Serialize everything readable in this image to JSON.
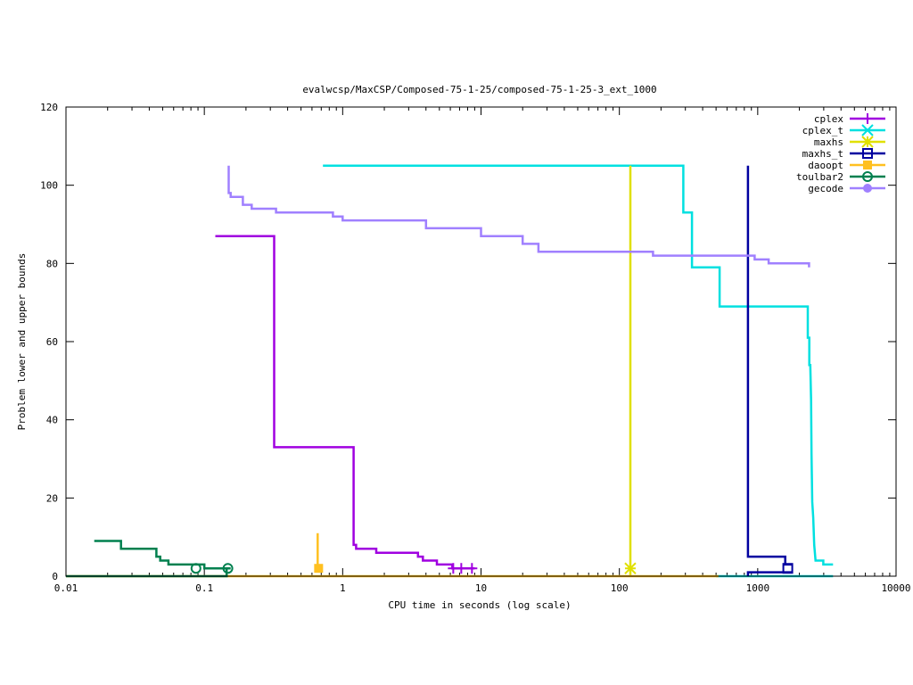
{
  "chart_data": {
    "type": "line",
    "title": "evalwcsp/MaxCSP/Composed-75-1-25/composed-75-1-25-3_ext_1000",
    "xlabel": "CPU time in seconds (log scale)",
    "ylabel": "Problem lower and upper bounds",
    "xscale": "log",
    "xlim": [
      0.01,
      10000
    ],
    "ylim": [
      0,
      120
    ],
    "x_ticks": [
      {
        "value": 0.01,
        "label": "0.01"
      },
      {
        "value": 0.1,
        "label": "0.1"
      },
      {
        "value": 1,
        "label": "1"
      },
      {
        "value": 10,
        "label": "10"
      },
      {
        "value": 100,
        "label": "100"
      },
      {
        "value": 1000,
        "label": "1000"
      },
      {
        "value": 10000,
        "label": "10000"
      }
    ],
    "y_ticks": [
      {
        "value": 0,
        "label": "0"
      },
      {
        "value": 20,
        "label": "20"
      },
      {
        "value": 40,
        "label": "40"
      },
      {
        "value": 60,
        "label": "60"
      },
      {
        "value": 80,
        "label": "80"
      },
      {
        "value": 100,
        "label": "100"
      },
      {
        "value": 120,
        "label": "120"
      }
    ],
    "grid": false,
    "legend_position": "top-right",
    "series": [
      {
        "name": "cplex",
        "color": "#a000e0",
        "marker": "plus",
        "upper": [
          [
            0.12,
            87
          ],
          [
            0.32,
            87
          ],
          [
            0.32,
            33
          ],
          [
            1.2,
            33
          ],
          [
            1.2,
            8
          ],
          [
            1.25,
            8
          ],
          [
            1.25,
            7
          ],
          [
            1.75,
            7
          ],
          [
            1.75,
            6
          ],
          [
            3.5,
            6
          ],
          [
            3.5,
            5
          ],
          [
            3.8,
            5
          ],
          [
            3.8,
            4
          ],
          [
            4.8,
            4
          ],
          [
            4.8,
            3
          ],
          [
            6.2,
            3
          ],
          [
            6.2,
            2
          ],
          [
            9,
            2
          ]
        ],
        "lower": [],
        "markers": [
          [
            6.3,
            2
          ],
          [
            7.2,
            2
          ],
          [
            8.6,
            2
          ]
        ]
      },
      {
        "name": "cplex_t",
        "color": "#00e0e0",
        "marker": "x",
        "upper": [
          [
            0.72,
            105
          ],
          [
            290,
            105
          ],
          [
            290,
            93
          ],
          [
            335,
            93
          ],
          [
            335,
            79
          ],
          [
            530,
            79
          ],
          [
            530,
            69
          ],
          [
            2300,
            69
          ],
          [
            2300,
            61
          ],
          [
            2360,
            61
          ],
          [
            2360,
            54
          ],
          [
            2400,
            54
          ],
          [
            2430,
            45
          ],
          [
            2450,
            31
          ],
          [
            2480,
            19
          ],
          [
            2520,
            15
          ],
          [
            2560,
            8
          ],
          [
            2620,
            4
          ],
          [
            2980,
            4
          ],
          [
            2980,
            3
          ],
          [
            3500,
            3
          ]
        ],
        "lower": [
          [
            500,
            0
          ],
          [
            3500,
            0
          ]
        ],
        "markers": []
      },
      {
        "name": "maxhs",
        "color": "#e0e000",
        "marker": "star",
        "upper": [
          [
            120,
            105
          ],
          [
            120,
            0
          ]
        ],
        "lower": [],
        "markers": [
          [
            120,
            2
          ]
        ]
      },
      {
        "name": "maxhs_t",
        "color": "#0000a0",
        "marker": "square",
        "upper": [
          [
            850,
            105
          ],
          [
            850,
            5
          ],
          [
            1580,
            5
          ],
          [
            1580,
            3
          ],
          [
            1780,
            3
          ]
        ],
        "lower": [
          [
            850,
            0
          ],
          [
            850,
            1
          ],
          [
            1780,
            1
          ]
        ],
        "markers": [
          [
            1650,
            2
          ]
        ]
      },
      {
        "name": "daoopt",
        "color": "#ffc020",
        "marker": "filled-square",
        "upper": [
          [
            0.66,
            11
          ],
          [
            0.66,
            2
          ]
        ],
        "lower": [
          [
            0.01,
            0
          ],
          [
            520,
            0
          ]
        ],
        "markers": [
          [
            0.67,
            2
          ]
        ]
      },
      {
        "name": "toulbar2",
        "color": "#00804f",
        "marker": "circle",
        "upper": [
          [
            0.016,
            9
          ],
          [
            0.025,
            9
          ],
          [
            0.025,
            7
          ],
          [
            0.045,
            7
          ],
          [
            0.045,
            5
          ],
          [
            0.048,
            5
          ],
          [
            0.048,
            4
          ],
          [
            0.055,
            4
          ],
          [
            0.055,
            3
          ],
          [
            0.1,
            3
          ],
          [
            0.1,
            2
          ],
          [
            0.155,
            2
          ]
        ],
        "lower": [
          [
            0.01,
            0
          ],
          [
            0.145,
            0
          ],
          [
            0.145,
            2
          ]
        ],
        "markers": [
          [
            0.087,
            2
          ],
          [
            0.148,
            2
          ]
        ]
      },
      {
        "name": "gecode",
        "color": "#a080ff",
        "marker": "filled-circle",
        "upper": [
          [
            0.15,
            105
          ],
          [
            0.15,
            98
          ],
          [
            0.155,
            98
          ],
          [
            0.155,
            97
          ],
          [
            0.19,
            97
          ],
          [
            0.19,
            95
          ],
          [
            0.22,
            95
          ],
          [
            0.22,
            94
          ],
          [
            0.33,
            94
          ],
          [
            0.33,
            93
          ],
          [
            0.85,
            93
          ],
          [
            0.85,
            92
          ],
          [
            1,
            92
          ],
          [
            1,
            91
          ],
          [
            4,
            91
          ],
          [
            4,
            89
          ],
          [
            10,
            89
          ],
          [
            10,
            87
          ],
          [
            20,
            87
          ],
          [
            20,
            85
          ],
          [
            26,
            85
          ],
          [
            26,
            83
          ],
          [
            175,
            83
          ],
          [
            175,
            82
          ],
          [
            950,
            82
          ],
          [
            950,
            81
          ],
          [
            1200,
            81
          ],
          [
            1200,
            80
          ],
          [
            2350,
            80
          ],
          [
            2350,
            79
          ]
        ],
        "lower": [],
        "markers": []
      }
    ]
  }
}
